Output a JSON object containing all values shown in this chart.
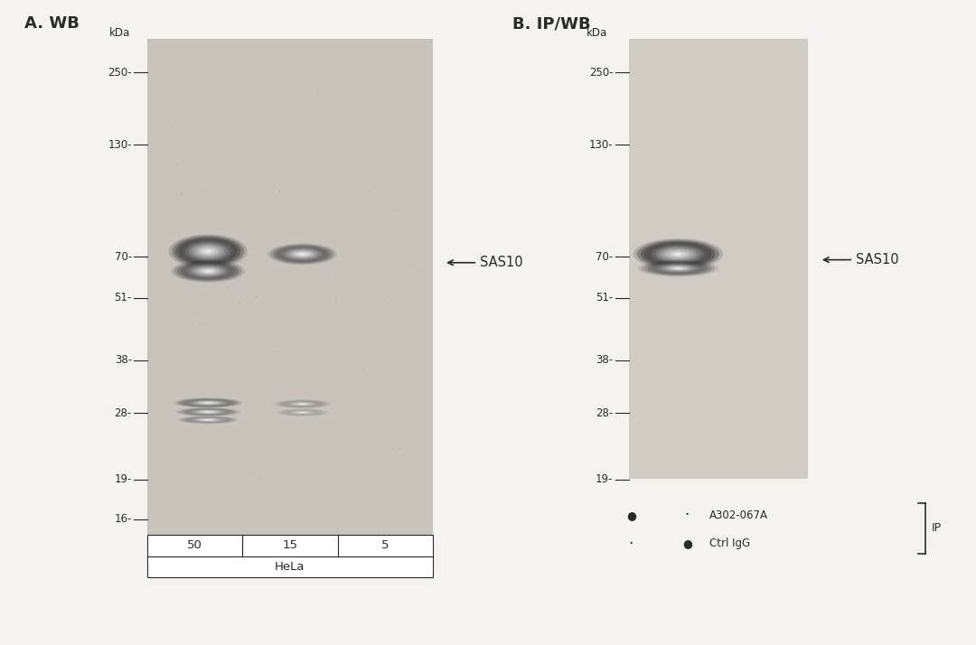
{
  "fig_bg": "#f5f3f0",
  "gel_bg_A": "#c8c4bc",
  "gel_bg_B": "#d0ccc4",
  "text_color": "#2a2a2a",
  "panel_A_title": "A. WB",
  "panel_B_title": "B. IP/WB",
  "kda_label": "kDa",
  "marker_labels_A": [
    "250-",
    "130-",
    "70-",
    "51-",
    "38-",
    "28-",
    "19-",
    "16-"
  ],
  "marker_labels_B": [
    "250-",
    "130-",
    "70-",
    "51-",
    "38-",
    "28-",
    "19-"
  ],
  "marker_ypos_A": [
    0.895,
    0.768,
    0.57,
    0.498,
    0.388,
    0.295,
    0.178,
    0.108
  ],
  "marker_ypos_B": [
    0.895,
    0.768,
    0.57,
    0.498,
    0.388,
    0.295,
    0.178
  ],
  "lanes_A": [
    "50",
    "15",
    "5"
  ],
  "lanes_group_label": "HeLa",
  "sas10_label": "SAS10",
  "antibody_label": "A302-067A",
  "ctrl_label": "Ctrl IgG",
  "ip_label": "IP"
}
